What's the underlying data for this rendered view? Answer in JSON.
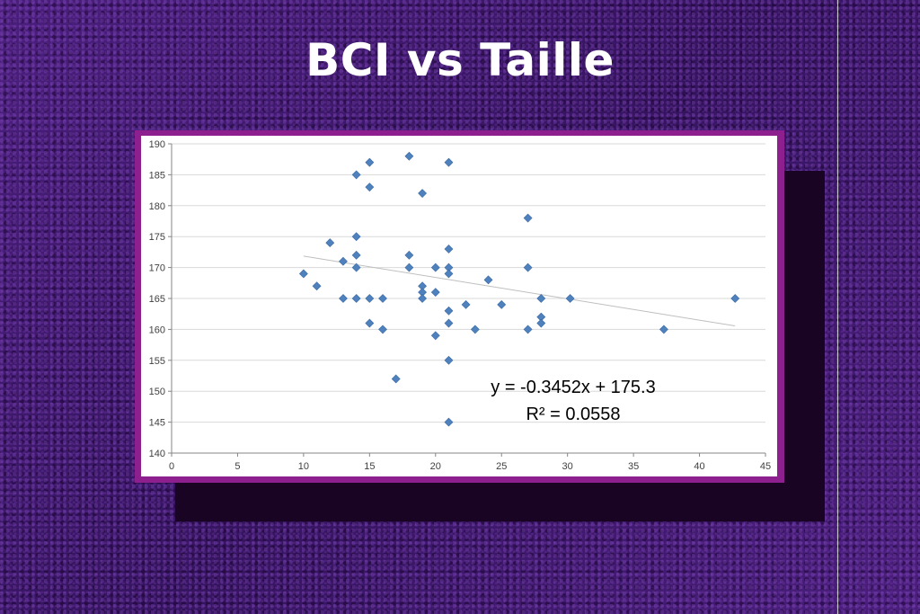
{
  "slide": {
    "title": "BCI vs Taille"
  },
  "colors": {
    "background": "#3f1a6c",
    "frame": "#8e1f8e",
    "marker": "#4f81bd",
    "trendline": "#bfbfbf"
  },
  "chart_data": {
    "type": "scatter",
    "title": "",
    "xlabel": "",
    "ylabel": "",
    "xlim": [
      0,
      45
    ],
    "ylim": [
      140,
      190
    ],
    "xticks": [
      0,
      5,
      10,
      15,
      20,
      25,
      30,
      35,
      40,
      45
    ],
    "yticks": [
      140,
      145,
      150,
      155,
      160,
      165,
      170,
      175,
      180,
      185,
      190
    ],
    "grid": "horizontal",
    "marker": "diamond",
    "legend": "none",
    "series": [
      {
        "points": [
          [
            10,
            169
          ],
          [
            11,
            167
          ],
          [
            12,
            174
          ],
          [
            13,
            171
          ],
          [
            13,
            165
          ],
          [
            14,
            185
          ],
          [
            14,
            175
          ],
          [
            14,
            172
          ],
          [
            14,
            170
          ],
          [
            14,
            165
          ],
          [
            15,
            187
          ],
          [
            15,
            183
          ],
          [
            15,
            165
          ],
          [
            15,
            161
          ],
          [
            16,
            165
          ],
          [
            16,
            160
          ],
          [
            17,
            152
          ],
          [
            18,
            188
          ],
          [
            18,
            172
          ],
          [
            18,
            170
          ],
          [
            19,
            182
          ],
          [
            19,
            167
          ],
          [
            19,
            166
          ],
          [
            19,
            165
          ],
          [
            20,
            170
          ],
          [
            20,
            166
          ],
          [
            20,
            159
          ],
          [
            21,
            187
          ],
          [
            21,
            173
          ],
          [
            21,
            170
          ],
          [
            21,
            169
          ],
          [
            21,
            163
          ],
          [
            21,
            161
          ],
          [
            21,
            155
          ],
          [
            21,
            145
          ],
          [
            22.3,
            164
          ],
          [
            23,
            160
          ],
          [
            24,
            168
          ],
          [
            25,
            164
          ],
          [
            27,
            178
          ],
          [
            27,
            170
          ],
          [
            27,
            160
          ],
          [
            28,
            165
          ],
          [
            28,
            162
          ],
          [
            28,
            161
          ],
          [
            30.2,
            165
          ],
          [
            37.3,
            160
          ],
          [
            42.7,
            165
          ]
        ]
      }
    ],
    "trendline": {
      "type": "linear",
      "slope": -0.3452,
      "intercept": 175.3,
      "x_range": [
        10,
        42.7
      ],
      "equation_label": "y = -0.3452x + 175.3",
      "r2_label": "R² = 0.0558"
    }
  }
}
